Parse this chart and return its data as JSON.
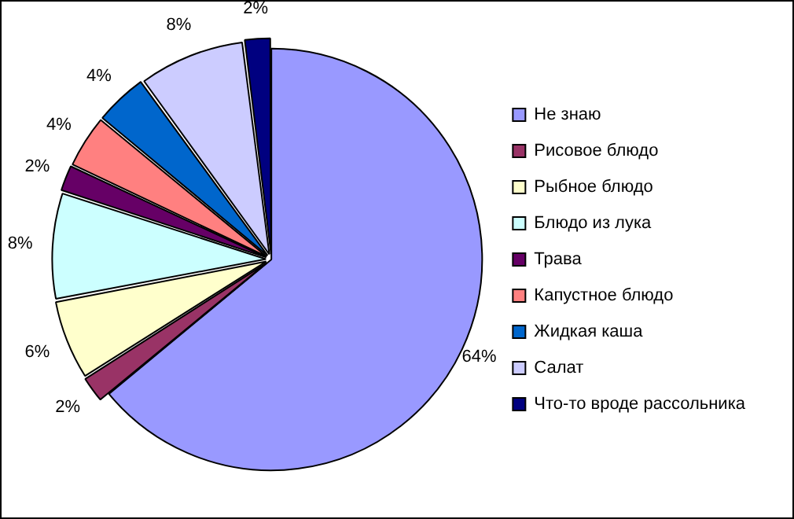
{
  "chart_data": {
    "type": "pie",
    "categories": [
      "Не знаю",
      "Рисовое блюдо",
      "Рыбное блюдо",
      "Блюдо из лука",
      "Трава",
      "Капустное блюдо",
      "Жидкая каша",
      "Салат",
      "Что-то вроде рассольника"
    ],
    "values": [
      64,
      2,
      6,
      8,
      2,
      4,
      4,
      8,
      2
    ],
    "colors": [
      "#9999ff",
      "#993366",
      "#ffffcc",
      "#ccffff",
      "#660066",
      "#ff8080",
      "#0066cc",
      "#ccccff",
      "#000080"
    ],
    "value_labels": [
      "64%",
      "2%",
      "6%",
      "8%",
      "2%",
      "4%",
      "4%",
      "8%",
      "2%"
    ],
    "legend": "right"
  }
}
